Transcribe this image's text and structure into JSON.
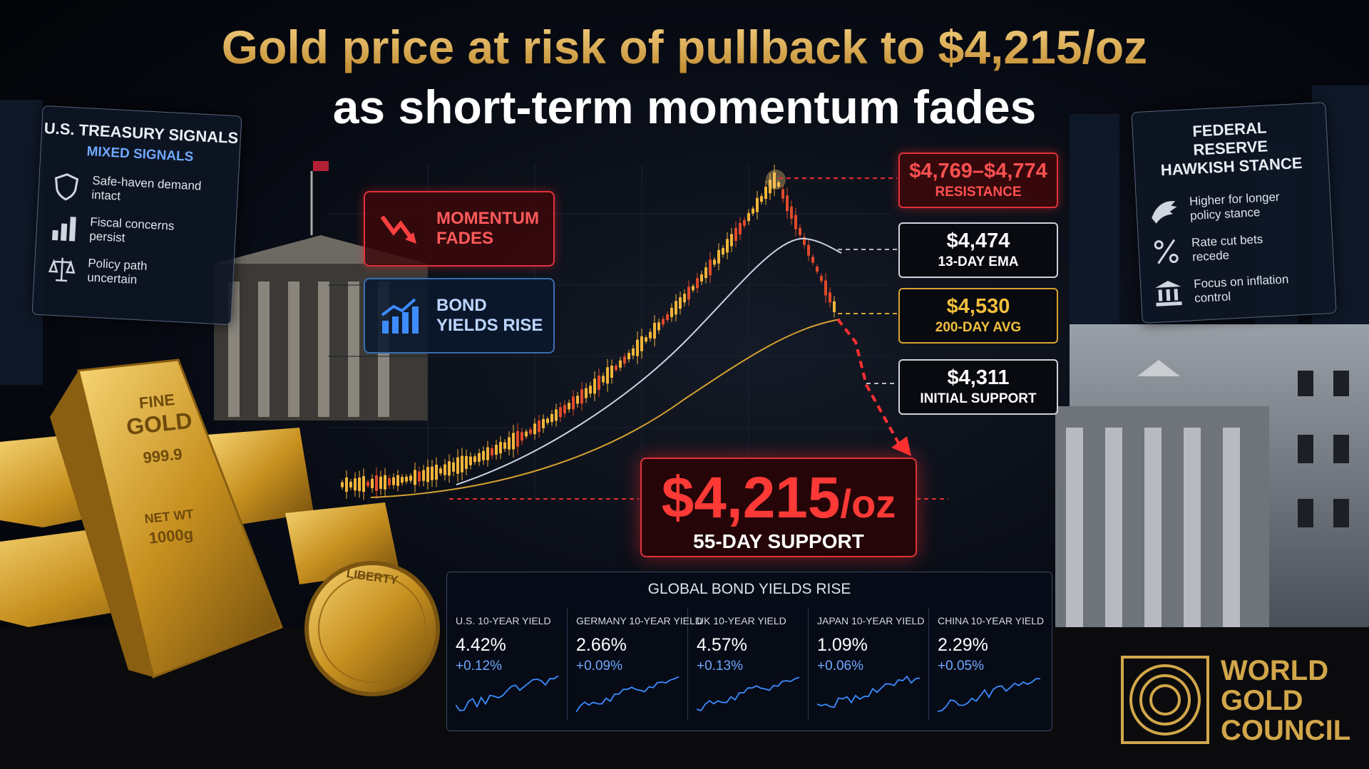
{
  "header": {
    "title_line1": "Gold price at risk of pullback to $4,215/oz",
    "title_line2": "as short-term momentum fades"
  },
  "treasury_panel": {
    "title": "U.S. TREASURY SIGNALS",
    "subtitle": "MIXED SIGNALS",
    "items": [
      "Safe-haven demand intact",
      "Fiscal concerns persist",
      "Policy path uncertain"
    ]
  },
  "callouts": [
    "MOMENTUM FADES",
    "BOND YIELDS RISE"
  ],
  "levels": [
    {
      "price": "$4,769–$4,774",
      "label": "RESISTANCE"
    },
    {
      "price": "$4,474",
      "label": "13-DAY EMA"
    },
    {
      "price": "$4,530",
      "label": "200-DAY AVG"
    },
    {
      "price": "$4,311",
      "label": "INITIAL SUPPORT"
    }
  ],
  "target": {
    "price": "$4,215",
    "unit": "/oz",
    "label": "55-DAY SUPPORT"
  },
  "bond_yields": {
    "title": "GLOBAL BOND YIELDS RISE",
    "items": [
      {
        "name": "U.S. 10-YEAR YIELD",
        "yield": "4.42%",
        "change": "+0.12%"
      },
      {
        "name": "GERMANY 10-YEAR YIELD",
        "yield": "2.66%",
        "change": "+0.09%"
      },
      {
        "name": "UK 10-YEAR YIELD",
        "yield": "4.57%",
        "change": "+0.13%"
      },
      {
        "name": "JAPAN 10-YEAR YIELD",
        "yield": "1.09%",
        "change": "+0.06%"
      },
      {
        "name": "CHINA 10-YEAR YIELD",
        "yield": "2.29%",
        "change": "+0.05%"
      }
    ]
  },
  "fed_panel": {
    "title": "FEDERAL RESERVE HAWKISH STANCE",
    "items": [
      "Higher for longer policy stance",
      "Rate cut bets recede",
      "Focus on inflation control"
    ]
  },
  "gold_bar": {
    "lines": [
      "FINE",
      "GOLD",
      "999.9",
      "NET WT",
      "1000g"
    ]
  },
  "coin": {
    "text": "LIBERTY"
  },
  "logo": {
    "lines": [
      "WORLD",
      "GOLD",
      "COUNCIL"
    ]
  }
}
